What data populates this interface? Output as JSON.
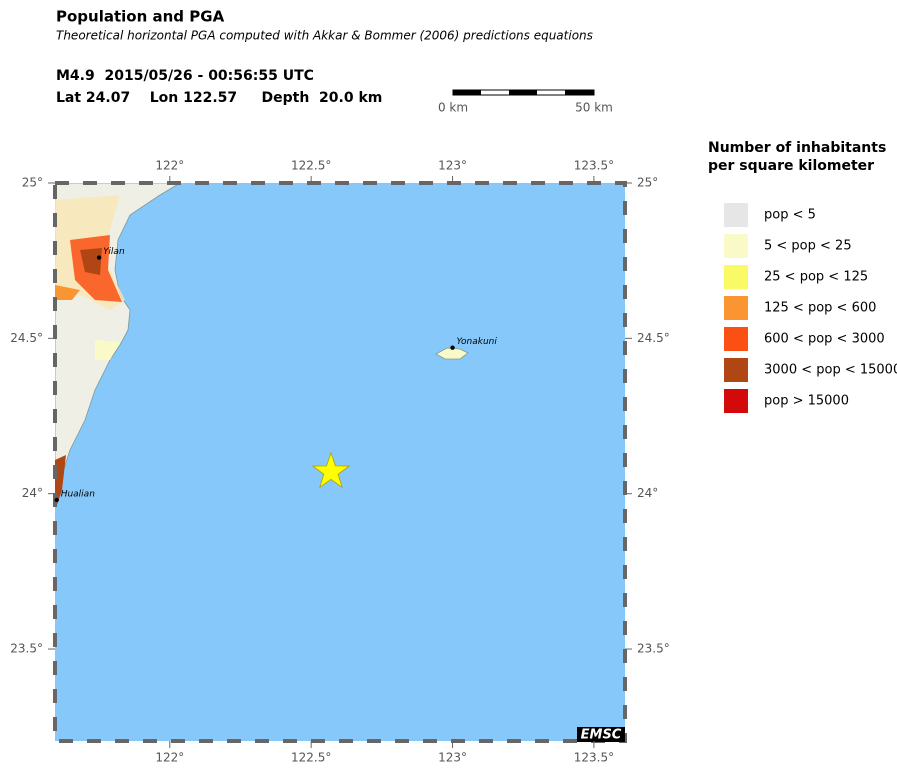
{
  "header": {
    "title": "Population and PGA",
    "subtitle": "Theoretical horizontal PGA computed with Akkar & Bommer (2006) predictions equations",
    "event": "M4.9  2015/05/26 - 00:56:55 UTC",
    "location": "Lat 24.07    Lon 122.57     Depth  20.0 km"
  },
  "scale_bar": {
    "labels": [
      "0 km",
      "50 km"
    ]
  },
  "map": {
    "lonlim": [
      121.594,
      123.61
    ],
    "latlim": [
      23.204,
      25.0
    ],
    "lonticks": [
      {
        "value": 122,
        "label": "122°"
      },
      {
        "value": 122.5,
        "label": "122.5°"
      },
      {
        "value": 123,
        "label": "123°"
      },
      {
        "value": 123.5,
        "label": "123.5°"
      }
    ],
    "latticks": [
      {
        "value": 25,
        "label": "25°"
      },
      {
        "value": 24.5,
        "label": "24.5°"
      },
      {
        "value": 24,
        "label": "24°"
      },
      {
        "value": 23.5,
        "label": "23.5°"
      }
    ],
    "epicenter": {
      "lon": 122.57,
      "lat": 24.07
    },
    "cities": [
      {
        "name": "Yilan",
        "lon": 121.75,
        "lat": 24.76
      },
      {
        "name": "Yonakuni",
        "lon": 123.0,
        "lat": 24.47
      },
      {
        "name": "Hualian",
        "lon": 121.6,
        "lat": 23.98
      }
    ],
    "credit": "EMSC"
  },
  "legend": {
    "title": [
      "Number of inhabitants",
      "per square kilometer"
    ],
    "items": [
      {
        "label": "pop < 5",
        "color": "#e6e6e6"
      },
      {
        "label": "5 < pop < 25",
        "color": "#fafac8"
      },
      {
        "label": "25 < pop < 125",
        "color": "#fafa64"
      },
      {
        "label": "125 < pop < 600",
        "color": "#fa9632"
      },
      {
        "label": "600 < pop < 3000",
        "color": "#fa5014"
      },
      {
        "label": "3000 < pop < 15000",
        "color": "#af4614"
      },
      {
        "label": "pop > 15000",
        "color": "#d20a0a"
      }
    ]
  }
}
